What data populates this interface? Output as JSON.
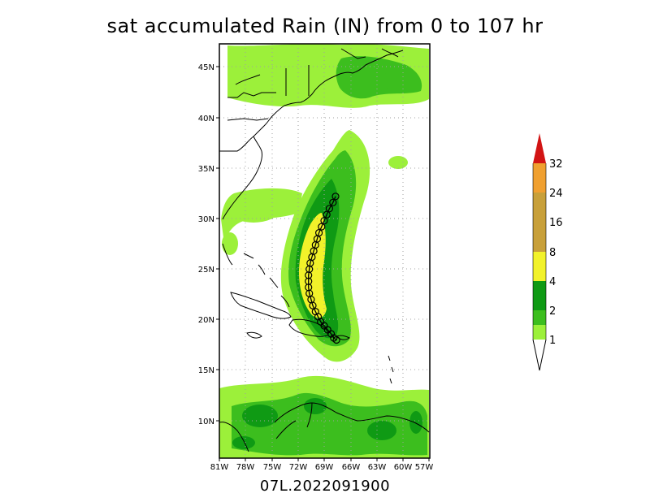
{
  "title": "sat accumulated Rain (IN) from 0 to 107 hr",
  "footer": "07L.2022091900",
  "map": {
    "lon_range": [
      -81,
      -57
    ],
    "lat_range": [
      6.5,
      47.5
    ],
    "lat_ticks": [
      {
        "value": 45,
        "label": "45N"
      },
      {
        "value": 40,
        "label": "40N"
      },
      {
        "value": 35,
        "label": "35N"
      },
      {
        "value": 30,
        "label": "30N"
      },
      {
        "value": 25,
        "label": "25N"
      },
      {
        "value": 20,
        "label": "20N"
      },
      {
        "value": 15,
        "label": "15N"
      },
      {
        "value": 10,
        "label": "10N"
      }
    ],
    "lon_ticks": [
      {
        "value": -81,
        "label": "81W"
      },
      {
        "value": -78,
        "label": "78W"
      },
      {
        "value": -75,
        "label": "75W"
      },
      {
        "value": -72,
        "label": "72W"
      },
      {
        "value": -69,
        "label": "69W"
      },
      {
        "value": -66,
        "label": "66W"
      },
      {
        "value": -63,
        "label": "63W"
      },
      {
        "value": -60,
        "label": "60W"
      },
      {
        "value": -57,
        "label": "57W"
      }
    ],
    "colors": {
      "ocean": "#ffffff",
      "grid": "#a0a0a0",
      "coast": "#000000",
      "track": "#000000"
    }
  },
  "colorbar": {
    "levels": [
      {
        "label": "1",
        "color": "#9cf03a"
      },
      {
        "label": "2",
        "color": "#3cbe1e"
      },
      {
        "label": "4",
        "color": "#0f9a14"
      },
      {
        "label": "8",
        "color": "#f2f22a"
      },
      {
        "label": "16",
        "color": "#c8a03a"
      },
      {
        "label": "24",
        "color": "#f0a030"
      },
      {
        "label": "32",
        "color": "#d21414"
      }
    ]
  },
  "storm_track": [
    [
      -67.6,
      18.2
    ],
    [
      -67.9,
      18.4
    ],
    [
      -68.2,
      18.8
    ],
    [
      -68.6,
      19.2
    ],
    [
      -69.0,
      19.6
    ],
    [
      -69.4,
      20.0
    ],
    [
      -69.7,
      20.5
    ],
    [
      -70.0,
      21.0
    ],
    [
      -70.3,
      21.6
    ],
    [
      -70.5,
      22.2
    ],
    [
      -70.7,
      22.8
    ],
    [
      -70.8,
      23.4
    ],
    [
      -70.8,
      24.0
    ],
    [
      -70.8,
      24.6
    ],
    [
      -70.7,
      25.2
    ],
    [
      -70.6,
      25.8
    ],
    [
      -70.4,
      26.4
    ],
    [
      -70.2,
      27.0
    ],
    [
      -70.0,
      27.6
    ],
    [
      -69.8,
      28.2
    ],
    [
      -69.6,
      28.8
    ],
    [
      -69.3,
      29.4
    ],
    [
      -69.0,
      30.0
    ],
    [
      -68.7,
      30.6
    ],
    [
      -68.4,
      31.2
    ],
    [
      -68.0,
      31.8
    ],
    [
      -67.7,
      32.4
    ]
  ]
}
